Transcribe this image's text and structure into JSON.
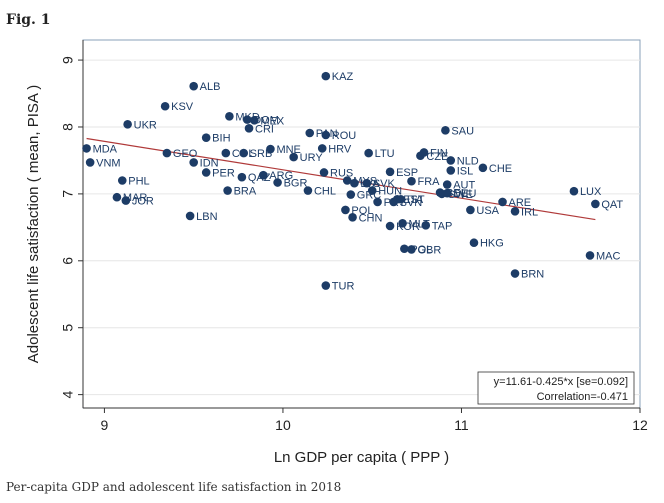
{
  "figure": {
    "label": "Fig. 1",
    "caption": "Per-capita GDP and adolescent life satisfaction in 2018"
  },
  "colors": {
    "point": "#1d3c66",
    "fit_line": "#b03a3a",
    "grid": "#e6e6e6",
    "frame": "#8aa1b8"
  },
  "chart_data": {
    "type": "scatter",
    "xlabel": "Ln GDP per capita ( PPP )",
    "ylabel": "Adolescent life satisfaction ( mean, PISA )",
    "xlim": [
      8.88,
      12.0
    ],
    "ylim": [
      3.8,
      9.3
    ],
    "xticks": [
      9,
      10,
      11,
      12
    ],
    "yticks": [
      4,
      5,
      6,
      7,
      8,
      9
    ],
    "grid": true,
    "annotation": [
      "y=11.61-0.425*x [se=0.092]",
      "Correlation=-0.471"
    ],
    "fit_line": {
      "intercept": 11.61,
      "slope": -0.425,
      "x_range": [
        8.9,
        11.75
      ]
    },
    "points": [
      {
        "label": "MDA",
        "x": 8.9,
        "y": 7.68
      },
      {
        "label": "VNM",
        "x": 8.92,
        "y": 7.47
      },
      {
        "label": "MAR",
        "x": 9.07,
        "y": 6.95
      },
      {
        "label": "PHL",
        "x": 9.1,
        "y": 7.2
      },
      {
        "label": "JOR",
        "x": 9.12,
        "y": 6.9
      },
      {
        "label": "UKR",
        "x": 9.13,
        "y": 8.04
      },
      {
        "label": "KSV",
        "x": 9.34,
        "y": 8.31
      },
      {
        "label": "GEO",
        "x": 9.35,
        "y": 7.61
      },
      {
        "label": "LBN",
        "x": 9.48,
        "y": 6.67
      },
      {
        "label": "IDN",
        "x": 9.5,
        "y": 7.47
      },
      {
        "label": "ALB",
        "x": 9.5,
        "y": 8.61
      },
      {
        "label": "BIH",
        "x": 9.57,
        "y": 7.84
      },
      {
        "label": "PER",
        "x": 9.57,
        "y": 7.32
      },
      {
        "label": "COL",
        "x": 9.68,
        "y": 7.61
      },
      {
        "label": "BRA",
        "x": 9.69,
        "y": 7.05
      },
      {
        "label": "MKD",
        "x": 9.7,
        "y": 8.16
      },
      {
        "label": "QAZ",
        "x": 9.77,
        "y": 7.25
      },
      {
        "label": "SRB",
        "x": 9.78,
        "y": 7.61
      },
      {
        "label": "DOM",
        "x": 9.8,
        "y": 8.11
      },
      {
        "label": "CRI",
        "x": 9.81,
        "y": 7.98
      },
      {
        "label": "MEX",
        "x": 9.84,
        "y": 8.1
      },
      {
        "label": "ARG",
        "x": 9.89,
        "y": 7.28
      },
      {
        "label": "MNE",
        "x": 9.93,
        "y": 7.67
      },
      {
        "label": "BGR",
        "x": 9.97,
        "y": 7.17
      },
      {
        "label": "URY",
        "x": 10.06,
        "y": 7.55
      },
      {
        "label": "PAN",
        "x": 10.15,
        "y": 7.91
      },
      {
        "label": "CHL",
        "x": 10.14,
        "y": 7.05
      },
      {
        "label": "HRV",
        "x": 10.22,
        "y": 7.68
      },
      {
        "label": "ROU",
        "x": 10.24,
        "y": 7.88
      },
      {
        "label": "RUS",
        "x": 10.23,
        "y": 7.32
      },
      {
        "label": "KAZ",
        "x": 10.24,
        "y": 8.76
      },
      {
        "label": "TUR",
        "x": 10.24,
        "y": 5.63
      },
      {
        "label": "MYS",
        "x": 10.36,
        "y": 7.2
      },
      {
        "label": "GRC",
        "x": 10.38,
        "y": 6.99
      },
      {
        "label": "POL",
        "x": 10.35,
        "y": 6.76
      },
      {
        "label": "LVA",
        "x": 10.4,
        "y": 7.16
      },
      {
        "label": "CHN",
        "x": 10.39,
        "y": 6.65
      },
      {
        "label": "SVK",
        "x": 10.47,
        "y": 7.16
      },
      {
        "label": "LTU",
        "x": 10.48,
        "y": 7.61
      },
      {
        "label": "HUN",
        "x": 10.5,
        "y": 7.05
      },
      {
        "label": "PRT",
        "x": 10.53,
        "y": 6.88
      },
      {
        "label": "ESP",
        "x": 10.6,
        "y": 7.33
      },
      {
        "label": "KOR",
        "x": 10.6,
        "y": 6.52
      },
      {
        "label": "SVN",
        "x": 10.62,
        "y": 6.88
      },
      {
        "label": "EST",
        "x": 10.64,
        "y": 6.92
      },
      {
        "label": "ITA",
        "x": 10.66,
        "y": 6.92
      },
      {
        "label": "MLT",
        "x": 10.67,
        "y": 6.56
      },
      {
        "label": "POL",
        "x": 10.68,
        "y": 6.18
      },
      {
        "label": "GBR",
        "x": 10.72,
        "y": 6.17
      },
      {
        "label": "FRA",
        "x": 10.72,
        "y": 7.19
      },
      {
        "label": "TAP",
        "x": 10.8,
        "y": 6.53
      },
      {
        "label": "CZE",
        "x": 10.77,
        "y": 7.57
      },
      {
        "label": "FIN",
        "x": 10.79,
        "y": 7.62
      },
      {
        "label": "SWE",
        "x": 10.89,
        "y": 7.0
      },
      {
        "label": "BEL",
        "x": 10.88,
        "y": 7.02
      },
      {
        "label": "DEU",
        "x": 10.92,
        "y": 7.01
      },
      {
        "label": "AUT",
        "x": 10.92,
        "y": 7.14
      },
      {
        "label": "NLD",
        "x": 10.94,
        "y": 7.5
      },
      {
        "label": "ISL",
        "x": 10.94,
        "y": 7.35
      },
      {
        "label": "SAU",
        "x": 10.91,
        "y": 7.95
      },
      {
        "label": "USA",
        "x": 11.05,
        "y": 6.76
      },
      {
        "label": "HKG",
        "x": 11.07,
        "y": 6.27
      },
      {
        "label": "CHE",
        "x": 11.12,
        "y": 7.39
      },
      {
        "label": "ARE",
        "x": 11.23,
        "y": 6.88
      },
      {
        "label": "IRL",
        "x": 11.3,
        "y": 6.74
      },
      {
        "label": "BRN",
        "x": 11.3,
        "y": 5.81
      },
      {
        "label": "LUX",
        "x": 11.63,
        "y": 7.04
      },
      {
        "label": "MAC",
        "x": 11.72,
        "y": 6.08
      },
      {
        "label": "QAT",
        "x": 11.75,
        "y": 6.85
      }
    ]
  }
}
